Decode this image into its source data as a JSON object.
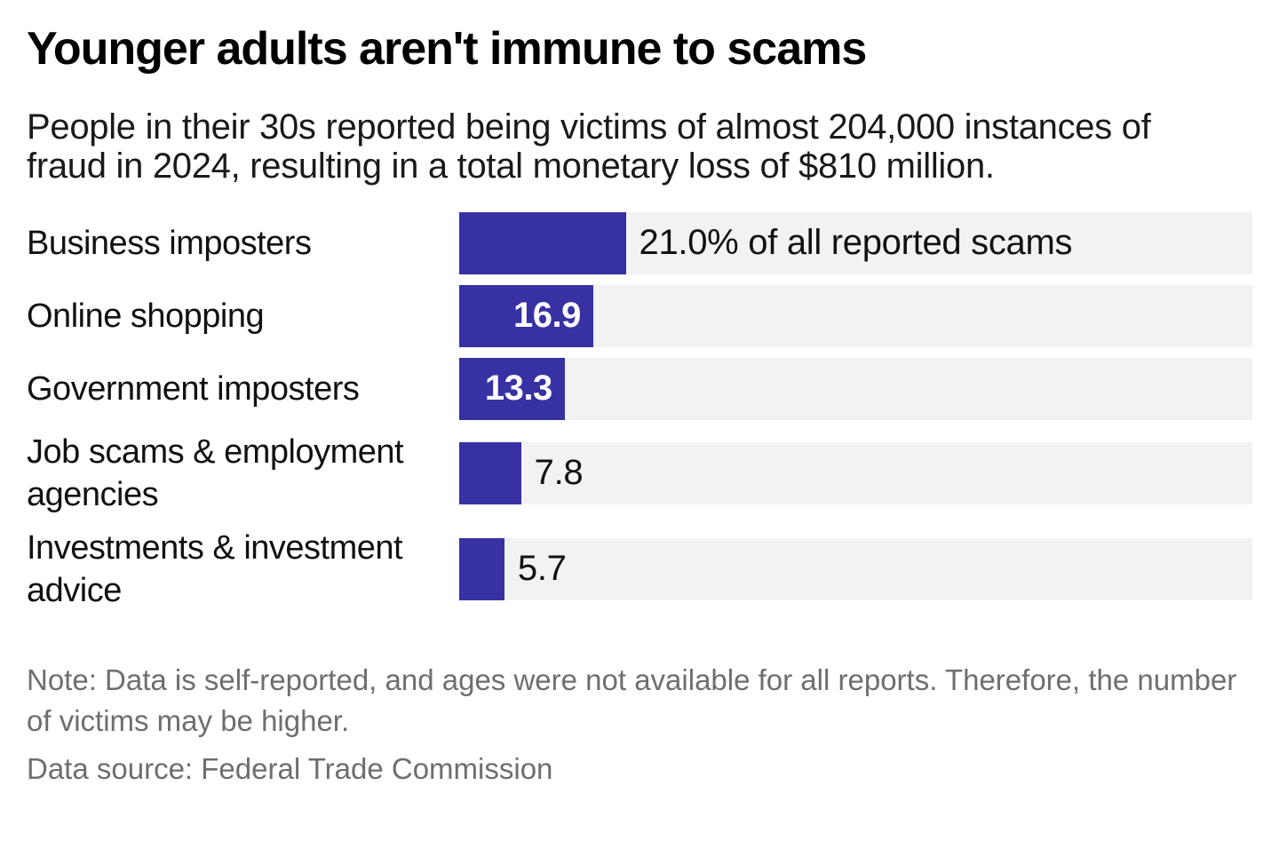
{
  "header": {
    "title": "Younger adults aren't immune to scams",
    "subtitle": "People in their 30s reported being victims of almost 204,000 instances of fraud in 2024, resulting in a total monetary loss of $810 million."
  },
  "chart_data": {
    "type": "bar",
    "orientation": "horizontal",
    "title": "Younger adults aren't immune to scams",
    "subtitle": "People in their 30s reported being victims of almost 204,000 instances of fraud in 2024, resulting in a total monetary loss of $810 million.",
    "categories": [
      "Business imposters",
      "Online shopping",
      "Government imposters",
      "Job scams & employment agencies",
      "Investments & investment advice"
    ],
    "values": [
      21.0,
      16.9,
      13.3,
      7.8,
      5.7
    ],
    "value_labels": [
      "21.0% of all reported scams",
      "16.9",
      "13.3",
      "7.8",
      "5.7"
    ],
    "value_label_position": [
      "outside",
      "inside",
      "inside",
      "outside",
      "outside"
    ],
    "unit": "% of all reported scams",
    "xlabel": "",
    "ylabel": "",
    "xlim": [
      0,
      100
    ],
    "grid": "off",
    "legend": "none",
    "bar_color": "#3731a3",
    "track_color": "#f2f2f2"
  },
  "footer": {
    "note": "Note: Data is self-reported, and ages were not available for all reports. Therefore, the number of victims may be higher.",
    "source": "Data source: Federal Trade Commission"
  }
}
